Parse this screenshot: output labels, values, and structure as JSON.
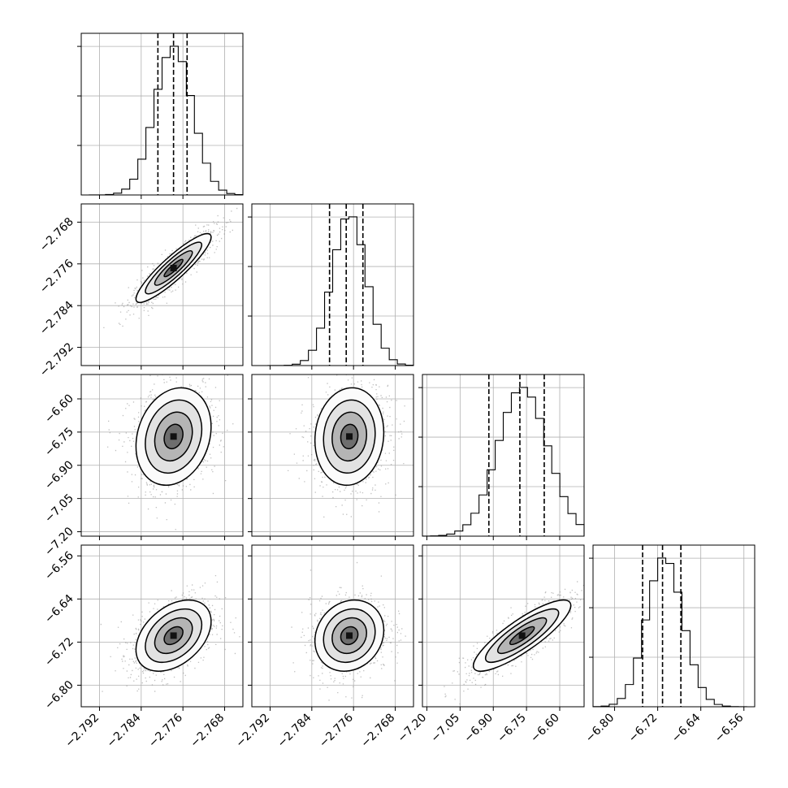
{
  "chart_data": {
    "type": "corner",
    "grid": true,
    "style": {
      "line_color": "#000000",
      "grid_color": "#b0b0b0",
      "scatter_color": "#8a8a8a",
      "background": "#ffffff"
    },
    "params": [
      {
        "index": 0,
        "range": [
          -2.7955,
          -2.7645
        ],
        "ticks": [
          -2.792,
          -2.784,
          -2.776,
          -2.768
        ],
        "tick_labels": [
          "−2.792",
          "−2.784",
          "−2.776",
          "−2.768"
        ],
        "mean": -2.7778,
        "sd": 0.0036,
        "quantiles": [
          -2.7808,
          -2.7778,
          -2.7752
        ]
      },
      {
        "index": 1,
        "range": [
          -2.7955,
          -2.7645
        ],
        "ticks": [
          -2.792,
          -2.784,
          -2.776,
          -2.768
        ],
        "tick_labels": [
          "−2.792",
          "−2.784",
          "−2.776",
          "−2.768"
        ],
        "mean": -2.7768,
        "sd": 0.0033,
        "quantiles": [
          -2.7806,
          -2.7774,
          -2.7742
        ]
      },
      {
        "index": 2,
        "range": [
          -7.22,
          -6.49
        ],
        "ticks": [
          -7.2,
          -7.05,
          -6.9,
          -6.75,
          -6.6
        ],
        "tick_labels": [
          "−7.20",
          "−7.05",
          "−6.90",
          "−6.75",
          "−6.60"
        ],
        "mean": -6.77,
        "sd": 0.11,
        "quantiles": [
          -6.92,
          -6.78,
          -6.67
        ]
      },
      {
        "index": 3,
        "range": [
          -6.84,
          -6.54
        ],
        "ticks": [
          -6.8,
          -6.72,
          -6.64,
          -6.56
        ],
        "tick_labels": [
          "−6.80",
          "−6.72",
          "−6.64",
          "−6.56"
        ],
        "mean": -6.708,
        "sd": 0.033,
        "quantiles": [
          -6.748,
          -6.711,
          -6.677
        ]
      }
    ],
    "correlations": [
      {
        "pair": [
          0,
          1
        ],
        "rho": 0.9
      },
      {
        "pair": [
          0,
          2
        ],
        "rho": 0.2
      },
      {
        "pair": [
          1,
          2
        ],
        "rho": 0.08
      },
      {
        "pair": [
          0,
          3
        ],
        "rho": 0.4
      },
      {
        "pair": [
          1,
          3
        ],
        "rho": 0.15
      },
      {
        "pair": [
          2,
          3
        ],
        "rho": 0.85
      }
    ],
    "contour_levels": [
      "0.5 sigma",
      "1 sigma",
      "1.5 sigma",
      "2 sigma"
    ],
    "histogram_bins": 20
  }
}
